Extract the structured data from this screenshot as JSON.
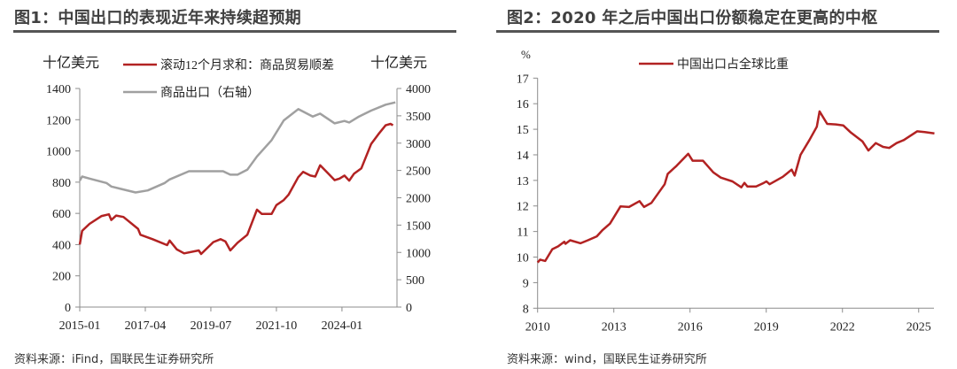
{
  "panel1": {
    "title": "图1：中国出口的表现近年来持续超预期",
    "source": "资料来源：iFind，国联民生证券研究所"
  },
  "panel2": {
    "title": "图2：2020 年之后中国出口份额稳定在更高的中枢",
    "source": "资料来源：wind，国联民生证券研究所"
  },
  "chart_data": [
    {
      "type": "line",
      "title": "图1：中国出口的表现近年来持续超预期",
      "ylabel": "十亿美元",
      "y2label": "十亿美元",
      "ylim": [
        0,
        1400
      ],
      "y2lim": [
        0,
        4000
      ],
      "yticks": [
        "0",
        "200",
        "400",
        "600",
        "800",
        "1000",
        "1200",
        "1400"
      ],
      "y2ticks": [
        "0",
        "500",
        "1000",
        "1500",
        "2000",
        "2500",
        "3000",
        "3500",
        "4000"
      ],
      "xticks": [
        "2015-01",
        "2017-04",
        "2019-07",
        "2021-10",
        "2024-01"
      ],
      "legend_position": "top",
      "grid": false,
      "series": [
        {
          "name": "滚动12个月求和：商品贸易顺差",
          "axis": "left",
          "color": "#B22222",
          "points": [
            [
              "2015-01",
              401
            ],
            [
              "2015-02",
              488
            ],
            [
              "2015-05",
              533
            ],
            [
              "2015-10",
              583
            ],
            [
              "2016-01",
              594
            ],
            [
              "2016-02",
              558
            ],
            [
              "2016-04",
              586
            ],
            [
              "2016-07",
              577
            ],
            [
              "2017-01",
              501
            ],
            [
              "2017-02",
              463
            ],
            [
              "2017-07",
              435
            ],
            [
              "2018-01",
              397
            ],
            [
              "2018-02",
              426
            ],
            [
              "2018-05",
              369
            ],
            [
              "2018-08",
              344
            ],
            [
              "2019-02",
              363
            ],
            [
              "2019-03",
              340
            ],
            [
              "2019-08",
              416
            ],
            [
              "2019-11",
              435
            ],
            [
              "2020-01",
              420
            ],
            [
              "2020-03",
              363
            ],
            [
              "2020-06",
              412
            ],
            [
              "2020-10",
              463
            ],
            [
              "2021-02",
              624
            ],
            [
              "2021-04",
              596
            ],
            [
              "2021-08",
              596
            ],
            [
              "2021-10",
              653
            ],
            [
              "2022-01",
              685
            ],
            [
              "2022-03",
              719
            ],
            [
              "2022-07",
              832
            ],
            [
              "2022-09",
              866
            ],
            [
              "2022-12",
              842
            ],
            [
              "2023-02",
              836
            ],
            [
              "2023-04",
              908
            ],
            [
              "2023-07",
              861
            ],
            [
              "2023-10",
              813
            ],
            [
              "2023-12",
              823
            ],
            [
              "2024-02",
              842
            ],
            [
              "2024-04",
              810
            ],
            [
              "2024-06",
              855
            ],
            [
              "2024-09",
              889
            ],
            [
              "2025-01",
              1044
            ],
            [
              "2025-04",
              1107
            ],
            [
              "2025-07",
              1164
            ],
            [
              "2025-09",
              1173
            ],
            [
              "2025-10",
              1164
            ]
          ]
        },
        {
          "name": "商品出口（右轴）",
          "axis": "right",
          "color": "#A0A0A0",
          "points": [
            [
              "2015-01",
              2314
            ],
            [
              "2015-02",
              2389
            ],
            [
              "2015-05",
              2351
            ],
            [
              "2015-12",
              2270
            ],
            [
              "2016-02",
              2205
            ],
            [
              "2016-06",
              2162
            ],
            [
              "2016-12",
              2097
            ],
            [
              "2017-05",
              2135
            ],
            [
              "2017-12",
              2270
            ],
            [
              "2018-02",
              2335
            ],
            [
              "2018-10",
              2486
            ],
            [
              "2019-02",
              2486
            ],
            [
              "2019-12",
              2486
            ],
            [
              "2020-03",
              2422
            ],
            [
              "2020-06",
              2422
            ],
            [
              "2020-10",
              2514
            ],
            [
              "2021-02",
              2757
            ],
            [
              "2021-08",
              3054
            ],
            [
              "2022-01",
              3416
            ],
            [
              "2022-07",
              3622
            ],
            [
              "2023-01",
              3486
            ],
            [
              "2023-04",
              3540
            ],
            [
              "2023-10",
              3362
            ],
            [
              "2024-02",
              3405
            ],
            [
              "2024-04",
              3378
            ],
            [
              "2024-08",
              3486
            ],
            [
              "2025-01",
              3595
            ],
            [
              "2025-07",
              3703
            ],
            [
              "2025-11",
              3746
            ]
          ]
        }
      ]
    },
    {
      "type": "line",
      "title": "图2：2020 年之后中国出口份额稳定在更高的中枢",
      "ylabel": "%",
      "ylim": [
        8,
        17
      ],
      "yticks": [
        "8",
        "9",
        "10",
        "11",
        "12",
        "13",
        "14",
        "15",
        "16",
        "17"
      ],
      "xlim": [
        2010,
        2025.7
      ],
      "xticks": [
        "2010",
        "2013",
        "2016",
        "2019",
        "2022",
        "2025"
      ],
      "legend_position": "top",
      "grid": false,
      "series": [
        {
          "name": "中国出口占全球比重",
          "color": "#B22222",
          "points": [
            [
              2010.0,
              9.79
            ],
            [
              2010.1,
              9.9
            ],
            [
              2010.3,
              9.85
            ],
            [
              2010.58,
              10.31
            ],
            [
              2010.81,
              10.42
            ],
            [
              2011.05,
              10.6
            ],
            [
              2011.1,
              10.52
            ],
            [
              2011.28,
              10.66
            ],
            [
              2011.69,
              10.54
            ],
            [
              2011.98,
              10.66
            ],
            [
              2012.33,
              10.81
            ],
            [
              2012.56,
              11.06
            ],
            [
              2012.85,
              11.31
            ],
            [
              2013.26,
              11.98
            ],
            [
              2013.6,
              11.96
            ],
            [
              2014.01,
              12.19
            ],
            [
              2014.19,
              11.96
            ],
            [
              2014.48,
              12.12
            ],
            [
              2015.0,
              12.85
            ],
            [
              2015.12,
              13.25
            ],
            [
              2015.47,
              13.57
            ],
            [
              2015.93,
              14.04
            ],
            [
              2016.1,
              13.77
            ],
            [
              2016.51,
              13.77
            ],
            [
              2016.92,
              13.31
            ],
            [
              2017.21,
              13.11
            ],
            [
              2017.67,
              12.96
            ],
            [
              2018.02,
              12.73
            ],
            [
              2018.14,
              12.9
            ],
            [
              2018.26,
              12.76
            ],
            [
              2018.6,
              12.76
            ],
            [
              2018.9,
              12.9
            ],
            [
              2019.01,
              12.96
            ],
            [
              2019.13,
              12.85
            ],
            [
              2019.65,
              13.14
            ],
            [
              2020.0,
              13.42
            ],
            [
              2020.12,
              13.19
            ],
            [
              2020.35,
              14.0
            ],
            [
              2020.7,
              14.58
            ],
            [
              2020.99,
              15.1
            ],
            [
              2021.1,
              15.7
            ],
            [
              2021.4,
              15.21
            ],
            [
              2021.74,
              15.19
            ],
            [
              2022.03,
              15.15
            ],
            [
              2022.33,
              14.87
            ],
            [
              2022.79,
              14.52
            ],
            [
              2023.02,
              14.17
            ],
            [
              2023.31,
              14.46
            ],
            [
              2023.6,
              14.31
            ],
            [
              2023.84,
              14.27
            ],
            [
              2024.13,
              14.46
            ],
            [
              2024.42,
              14.58
            ],
            [
              2024.94,
              14.92
            ],
            [
              2025.24,
              14.89
            ],
            [
              2025.62,
              14.84
            ]
          ]
        }
      ]
    }
  ]
}
